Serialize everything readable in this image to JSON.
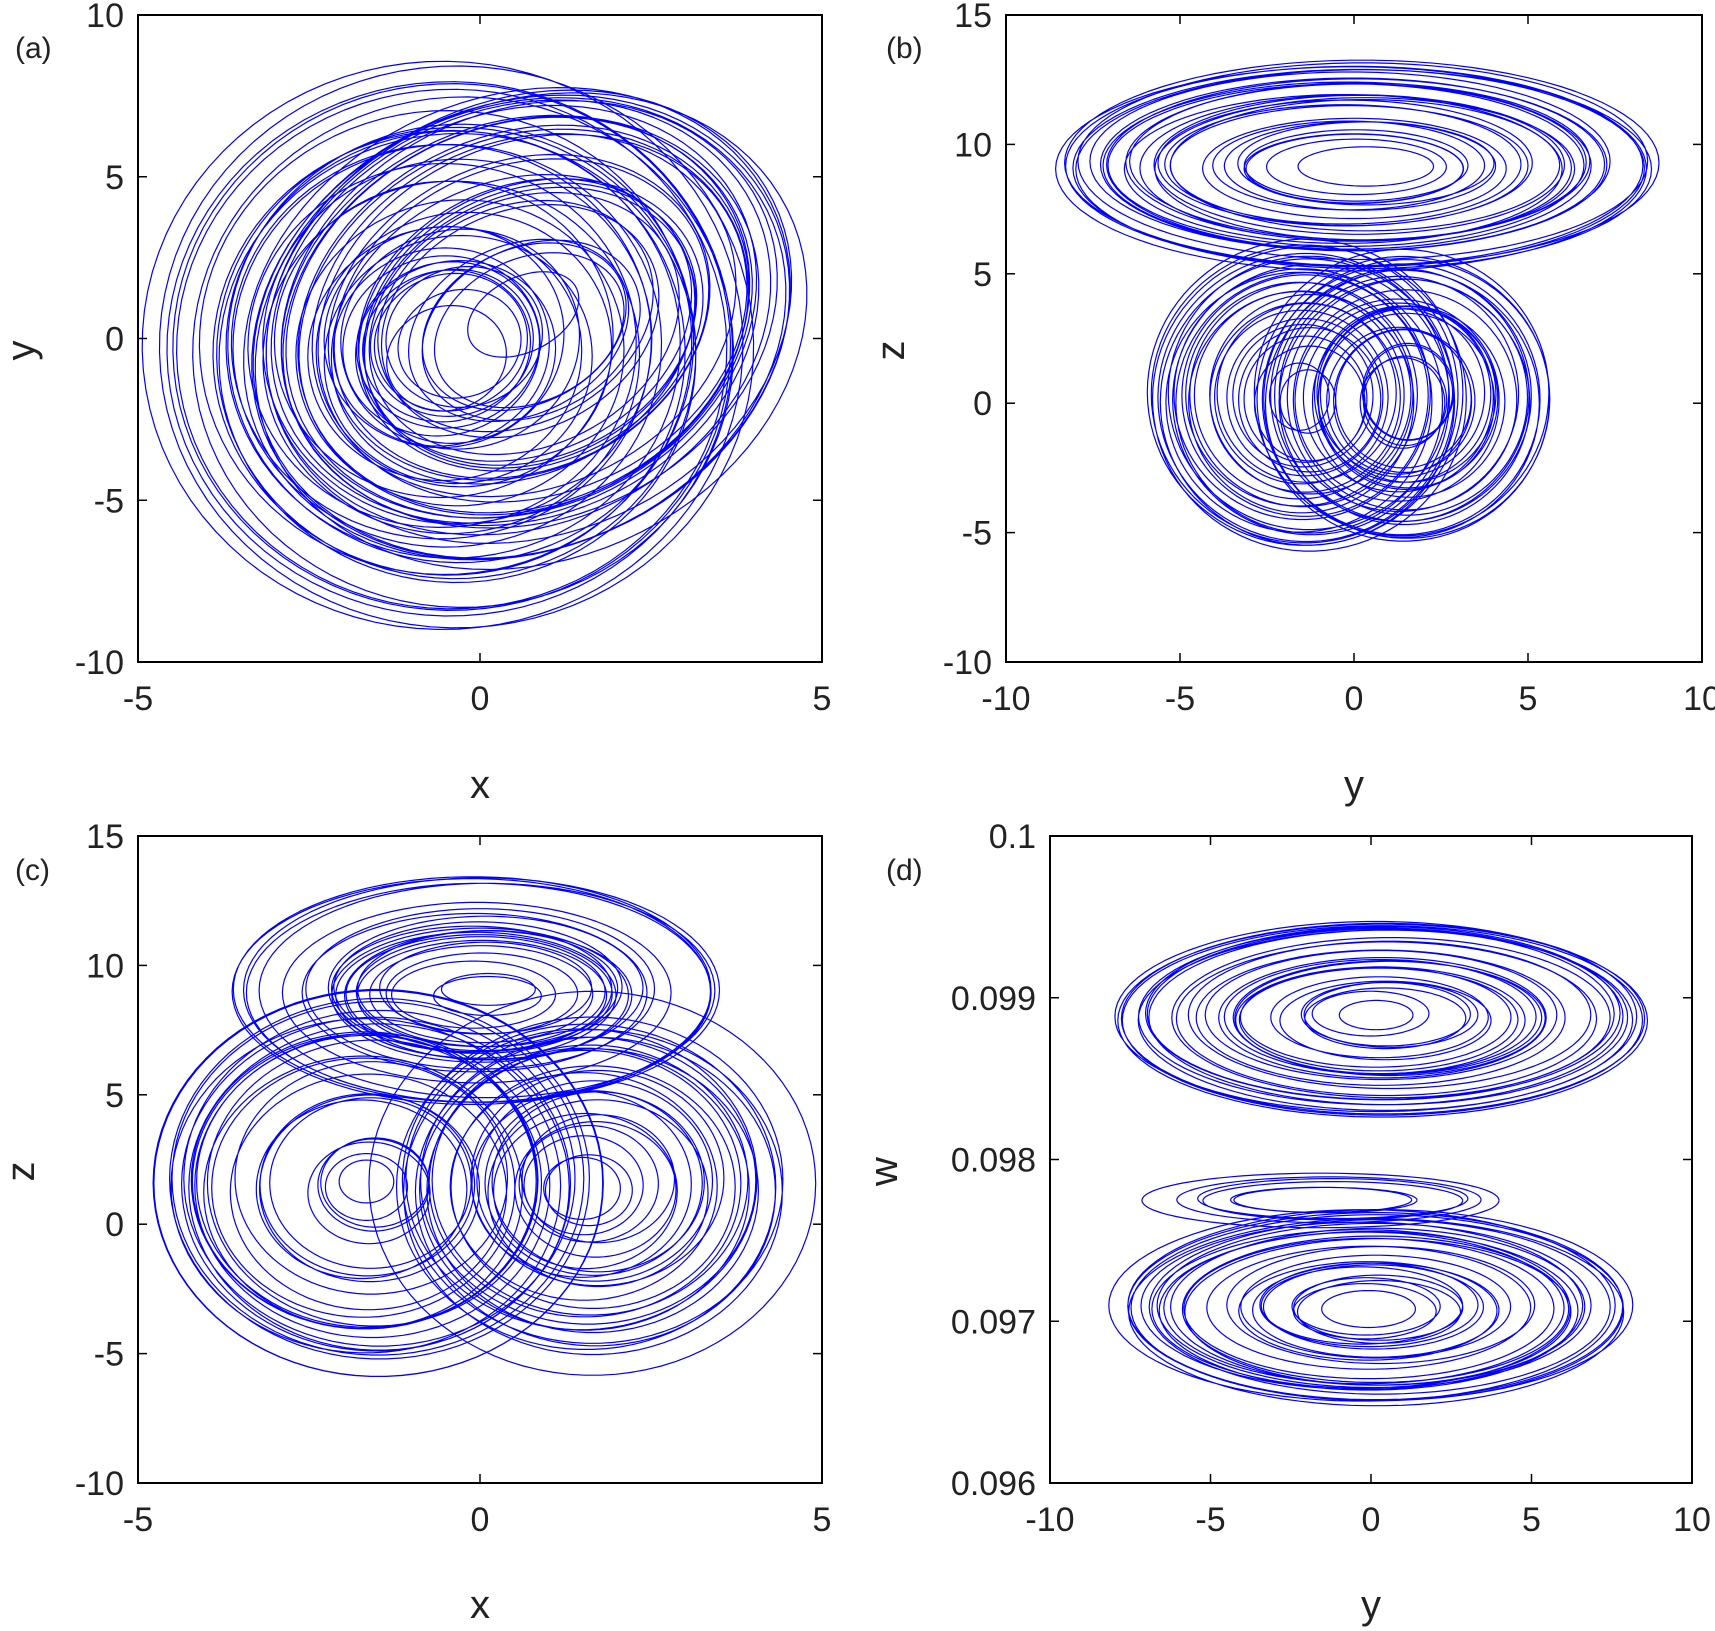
{
  "colors": {
    "trajectory": "#0000ff",
    "axes": "#000000",
    "text": "#222222"
  },
  "chart_data": [
    {
      "type": "line",
      "panel_label": "(a)",
      "xlabel": "x",
      "ylabel": "y",
      "xlim": [
        -5,
        5
      ],
      "ylim": [
        -10,
        10
      ],
      "xticks": [
        "-5",
        "0",
        "5"
      ],
      "yticks": [
        "-10",
        "-5",
        "0",
        "5",
        "10"
      ],
      "grid": false,
      "series": [
        {
          "style": "phase-portrait",
          "lobes": [
            {
              "cx": -0.4,
              "cy": -0.3,
              "rx_min": 0.6,
              "rx_max": 4.4,
              "ry_min": 1.0,
              "ry_max": 8.8,
              "tilt_deg": 25,
              "loops": 34
            },
            {
              "cx": 0.6,
              "cy": 0.5,
              "rx_min": 0.8,
              "rx_max": 4.2,
              "ry_min": 1.0,
              "ry_max": 7.0,
              "tilt_deg": 30,
              "loops": 30
            }
          ]
        }
      ]
    },
    {
      "type": "line",
      "panel_label": "(b)",
      "xlabel": "y",
      "ylabel": "z",
      "xlim": [
        -10,
        10
      ],
      "ylim": [
        -10,
        15
      ],
      "xticks": [
        "-10",
        "-5",
        "0",
        "5",
        "10"
      ],
      "yticks": [
        "-10",
        "-5",
        "0",
        "5",
        "10",
        "15"
      ],
      "grid": false,
      "series": [
        {
          "style": "phase-portrait",
          "lobes": [
            {
              "cx": -1.4,
              "cy": 0.2,
              "rx_min": 0.3,
              "rx_max": 4.6,
              "ry_min": 0.6,
              "ry_max": 6.0,
              "tilt_deg": 0,
              "loops": 26
            },
            {
              "cx": 1.4,
              "cy": 0.2,
              "rx_min": 0.3,
              "rx_max": 4.6,
              "ry_min": 0.6,
              "ry_max": 6.0,
              "tilt_deg": 0,
              "loops": 26
            },
            {
              "cx": 0.0,
              "cy": 9.2,
              "rx_min": 1.0,
              "rx_max": 8.6,
              "ry_min": 0.3,
              "ry_max": 4.0,
              "tilt_deg": 0,
              "loops": 30
            }
          ]
        }
      ]
    },
    {
      "type": "line",
      "panel_label": "(c)",
      "xlabel": "x",
      "ylabel": "z",
      "xlim": [
        -5,
        5
      ],
      "ylim": [
        -10,
        15
      ],
      "xticks": [
        "-5",
        "0",
        "5"
      ],
      "yticks": [
        "-10",
        "-5",
        "0",
        "5",
        "10",
        "15"
      ],
      "grid": false,
      "series": [
        {
          "style": "phase-portrait",
          "lobes": [
            {
              "cx": -1.6,
              "cy": 1.5,
              "rx_min": 0.3,
              "rx_max": 3.3,
              "ry_min": 0.6,
              "ry_max": 7.5,
              "tilt_deg": 0,
              "loops": 26
            },
            {
              "cx": 1.6,
              "cy": 1.5,
              "rx_min": 0.3,
              "rx_max": 3.3,
              "ry_min": 0.6,
              "ry_max": 7.5,
              "tilt_deg": 0,
              "loops": 26
            },
            {
              "cx": 0.0,
              "cy": 9.0,
              "rx_min": 0.6,
              "rx_max": 3.6,
              "ry_min": 0.5,
              "ry_max": 4.5,
              "tilt_deg": 0,
              "loops": 24
            }
          ]
        }
      ]
    },
    {
      "type": "line",
      "panel_label": "(d)",
      "xlabel": "y",
      "ylabel": "w",
      "xlim": [
        -10,
        10
      ],
      "ylim": [
        0.096,
        0.1
      ],
      "xticks": [
        "-10",
        "-5",
        "0",
        "5",
        "10"
      ],
      "yticks": [
        "0.096",
        "0.097",
        "0.098",
        "0.099",
        "0.1"
      ],
      "grid": false,
      "series": [
        {
          "style": "phase-portrait",
          "lobes": [
            {
              "cx": 0.3,
              "cy": 0.09888,
              "rx_min": 1.0,
              "rx_max": 8.3,
              "ry_min": 8e-05,
              "ry_max": 0.0006,
              "tilt_deg": 0,
              "loops": 28
            },
            {
              "cx": 0.0,
              "cy": 0.09708,
              "rx_min": 1.0,
              "rx_max": 8.0,
              "ry_min": 8e-05,
              "ry_max": 0.0006,
              "tilt_deg": 0,
              "loops": 28
            },
            {
              "cx": -1.5,
              "cy": 0.09775,
              "rx_min": 2.0,
              "rx_max": 8.0,
              "ry_min": 5e-05,
              "ry_max": 0.00025,
              "tilt_deg": 0,
              "loops": 6
            }
          ]
        }
      ]
    }
  ]
}
